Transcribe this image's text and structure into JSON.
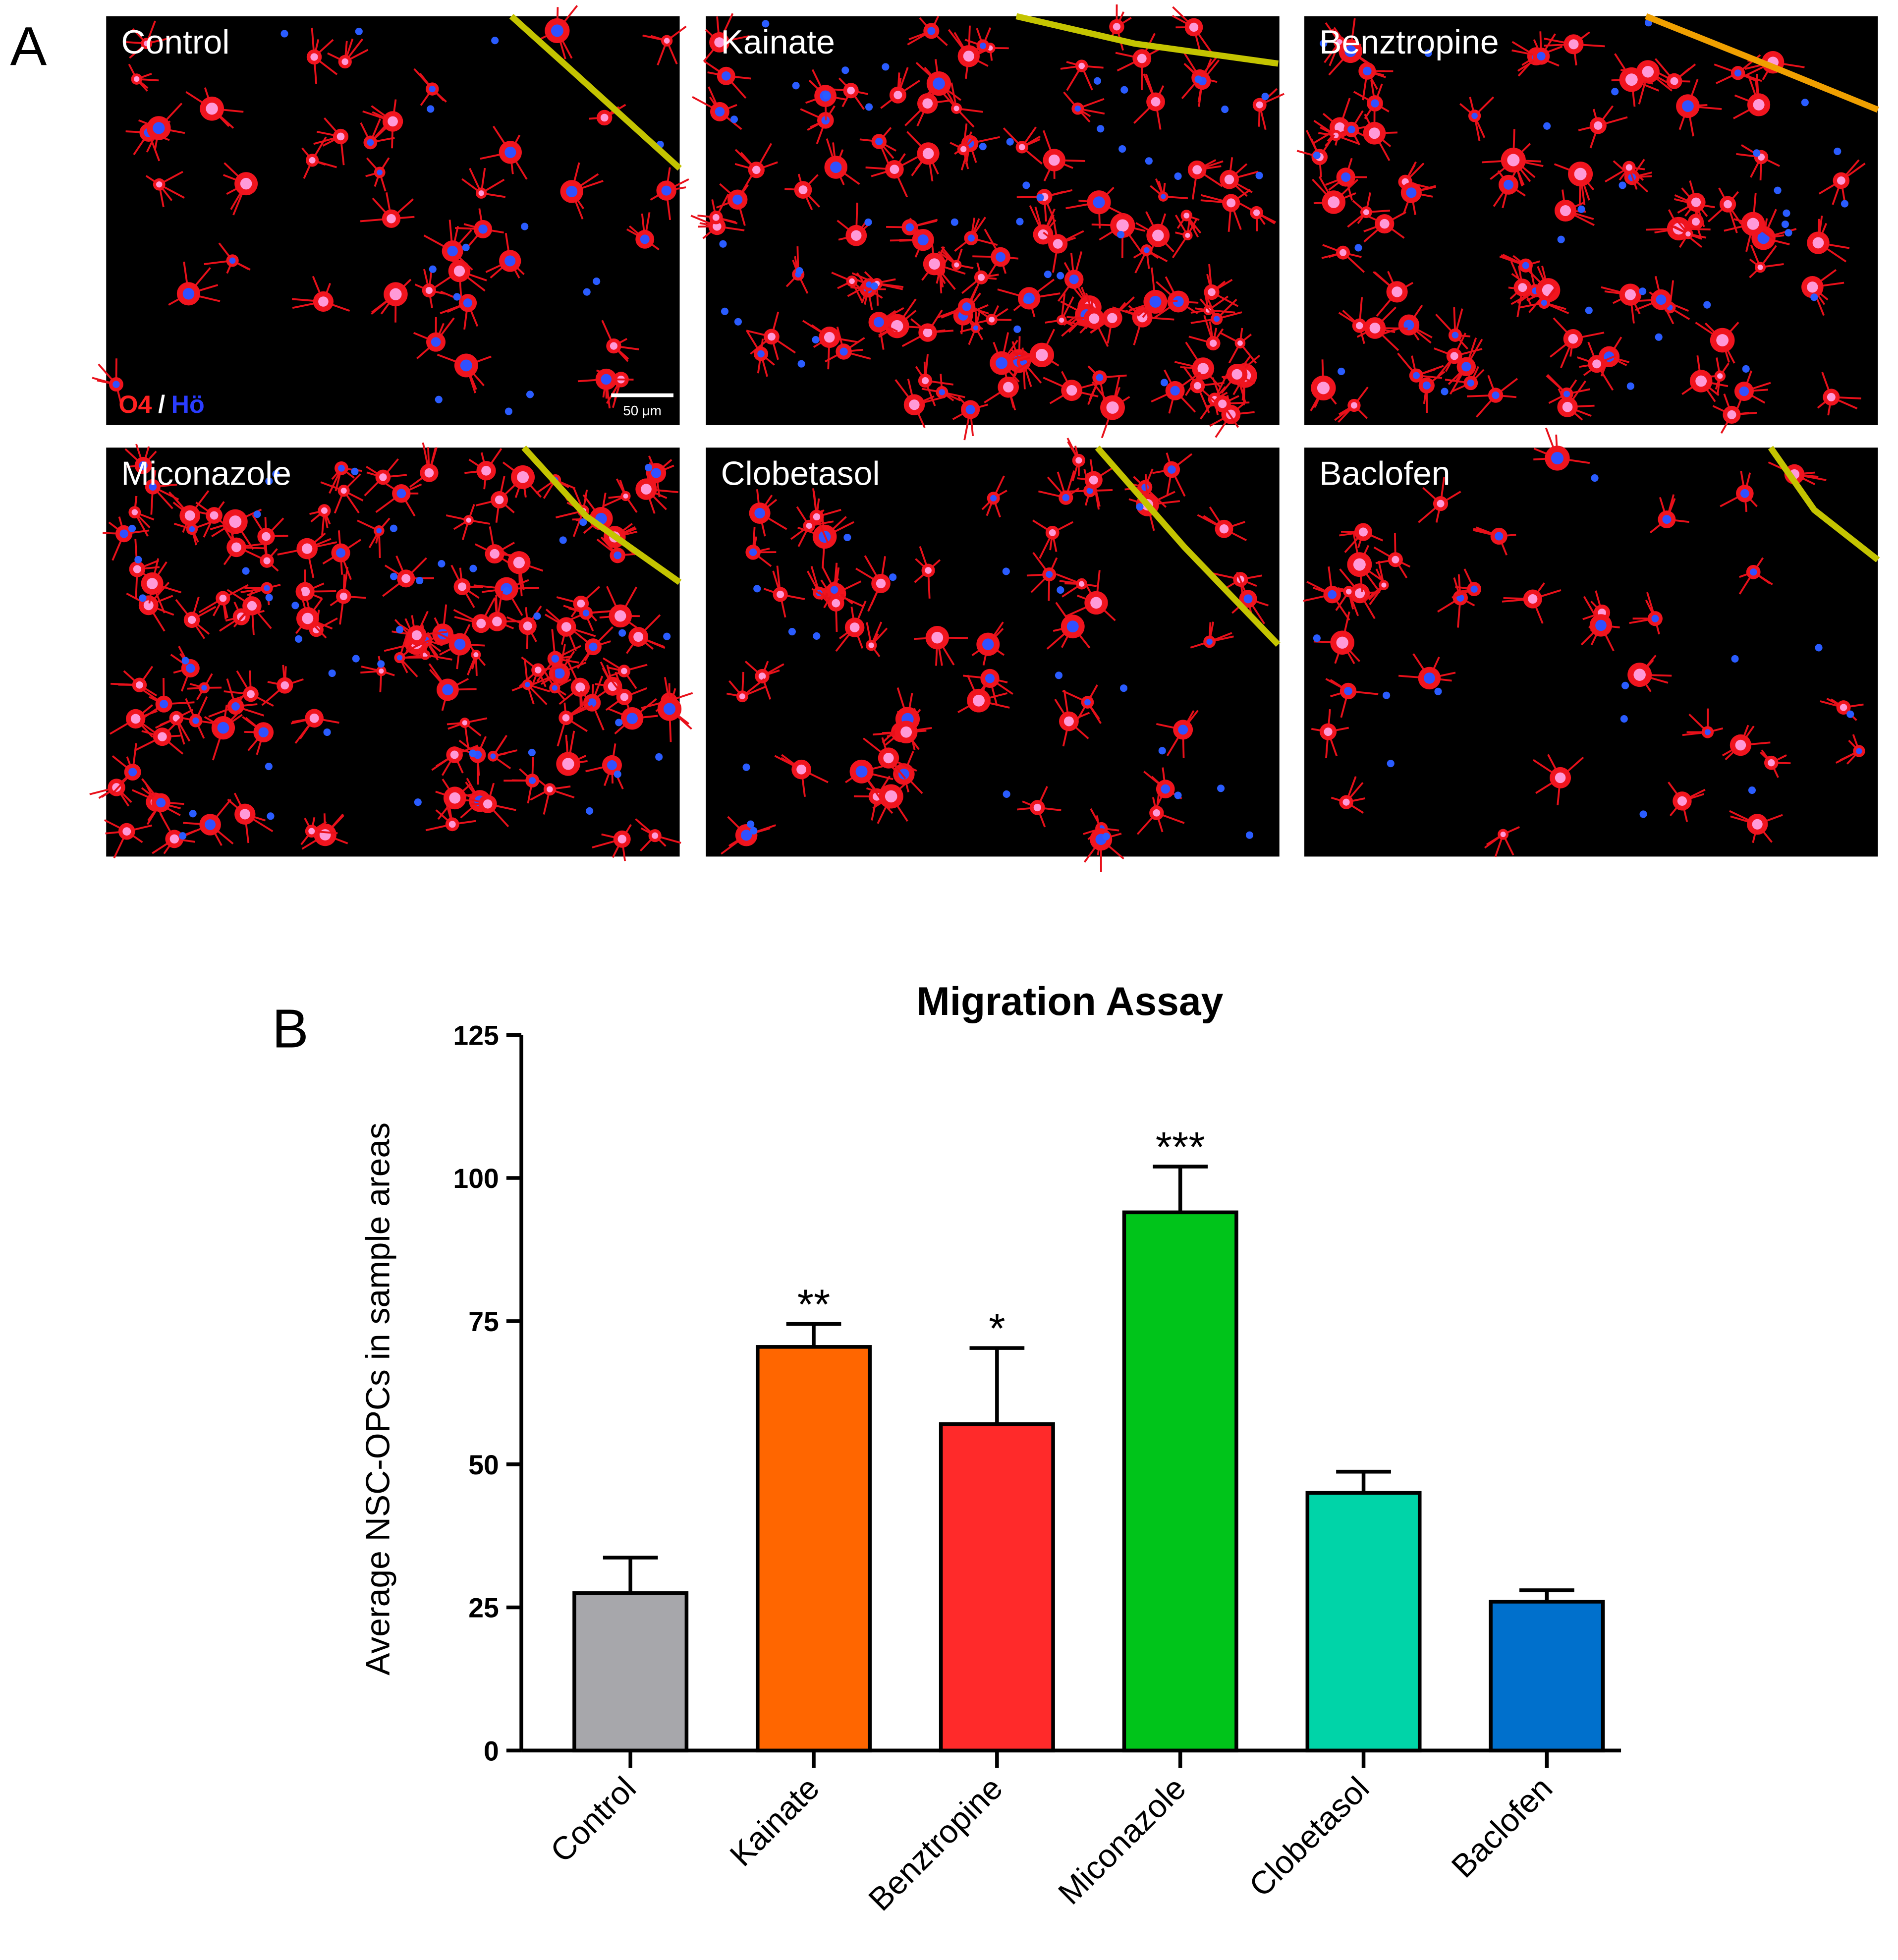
{
  "panel_labels": [
    "A",
    "B"
  ],
  "micrographs": [
    {
      "label": "Control"
    },
    {
      "label": "Kainate"
    },
    {
      "label": "Benztropine"
    },
    {
      "label": "Miconazole"
    },
    {
      "label": "Clobetasol"
    },
    {
      "label": "Baclofen"
    }
  ],
  "stain_labels": [
    "O4",
    "/",
    "Hö"
  ],
  "scale_bar": "50 μm",
  "chart_data": {
    "type": "bar",
    "title": "Migration Assay",
    "y_label": "Average  NSC-OPCs in sample areas",
    "categories": [
      "Control",
      "Kainate",
      "Benztropine",
      "Miconazole",
      "Clobetasol",
      "Baclofen"
    ],
    "values": [
      27.5,
      70.5,
      57,
      94,
      45,
      26
    ],
    "errors": [
      6.2,
      4,
      13.3,
      8,
      3.7,
      2
    ],
    "annotations": [
      null,
      "**",
      "*",
      "***",
      null,
      null
    ],
    "colors": [
      "#a7a7ab",
      "#ff6600",
      "#ff2a2a",
      "#00c41a",
      "#00d4a8",
      "#0070cc"
    ],
    "ylim": [
      0,
      125
    ],
    "yticks": [
      0,
      25,
      50,
      75,
      100,
      125
    ],
    "grid": false
  }
}
